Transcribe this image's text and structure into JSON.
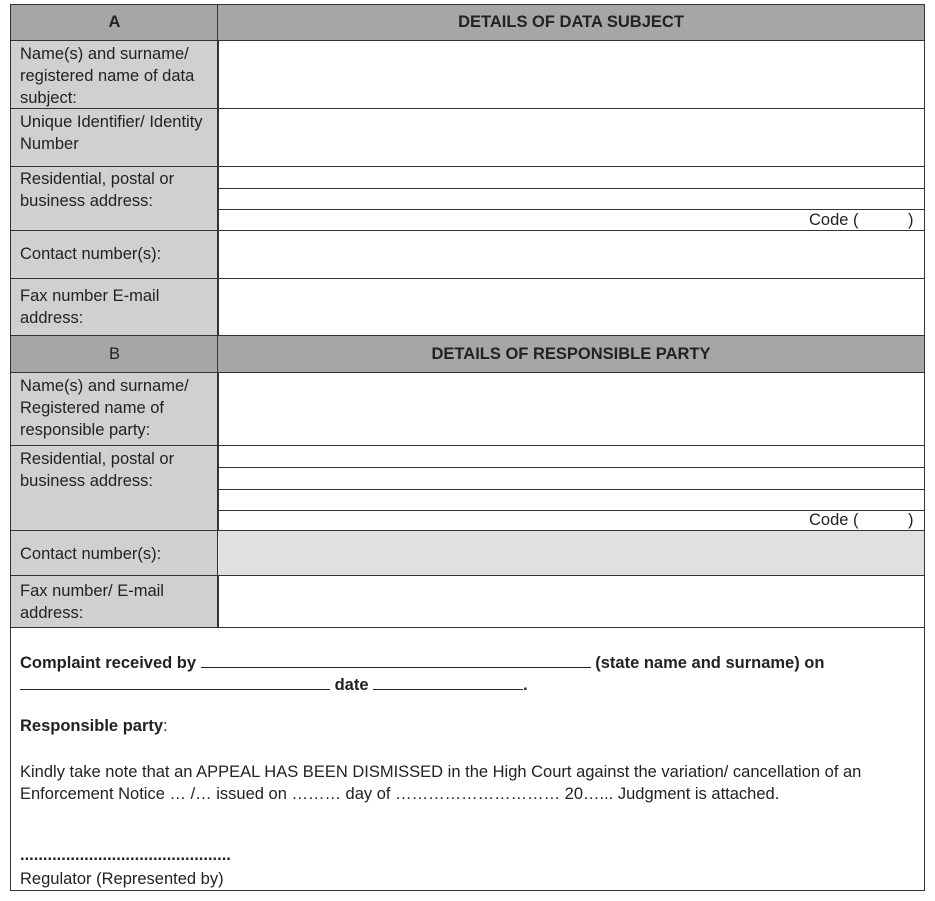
{
  "section_a": {
    "letter": "A",
    "title": "DETAILS OF DATA SUBJECT",
    "rows": [
      "Name(s) and surname/ registered name of data subject:",
      "Unique Identifier/ Identity Number",
      "Residential, postal or business address:",
      "Contact number(s):",
      "Fax number  E-mail address:"
    ],
    "code_open": "Code (",
    "code_close": ")"
  },
  "section_b": {
    "letter": "B",
    "title": "DETAILS OF RESPONSIBLE PARTY",
    "rows": [
      "Name(s) and surname/ Registered name of responsible party:",
      "Residential, postal or business address:",
      "Contact number(s):",
      "Fax number/ E-mail address:"
    ],
    "code_open": "Code (",
    "code_close": ")"
  },
  "notice": {
    "received_by": "Complaint received by",
    "state_name": "(state name and surname) on",
    "date": "date",
    "period": ".",
    "responsible_party": "Responsible party",
    "colon": ":",
    "body": "Kindly take note that an APPEAL HAS BEEN DISMISSED in the High Court against the variation/ cancellation of an Enforcement Notice … /… issued on ……… day of ………………………… 20…... Judgment is attached.",
    "signature_dots": "..............................................",
    "signature_label": "Regulator (Represented by)"
  }
}
